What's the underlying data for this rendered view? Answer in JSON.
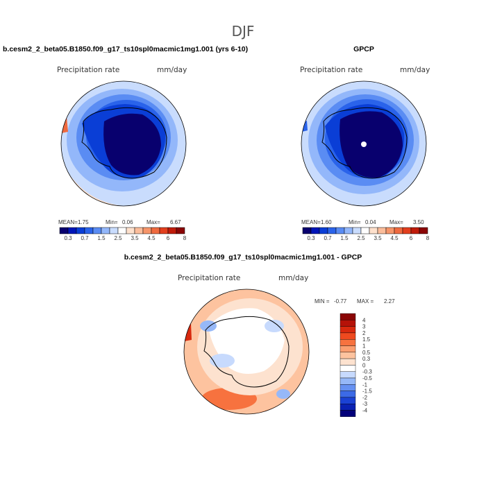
{
  "figure": {
    "season": "DJF"
  },
  "colors": {
    "land_outline": "#000000",
    "ocean_default": "#ffffff",
    "text": "#000000",
    "subtext": "#333333"
  },
  "chart_data": [
    {
      "type": "polar-contour-map",
      "id": "model",
      "title": "b.cesm2_2_beta05.B1850.f09_g17_ts10spl0macmic1mg1.001 (yrs 6-10)",
      "variable": "Precipitation rate",
      "units": "mm/day",
      "stats_labels": [
        "MEAN=",
        "Min=",
        "Max="
      ],
      "stats_values": [
        "1.75",
        "0.06",
        "6.67"
      ],
      "colorbar": {
        "levels": [
          "0.3",
          "0.7",
          "1.5",
          "2.5",
          "3.5",
          "4.5",
          "6",
          "8"
        ],
        "colors": [
          "#08006e",
          "#0015b8",
          "#0a3ed6",
          "#2a63ea",
          "#5a8cf3",
          "#93b7fa",
          "#c9dcfd",
          "#ffffff",
          "#fde0cc",
          "#fbbd9b",
          "#f6956a",
          "#ef6a3f",
          "#e23f1e",
          "#c01b0a",
          "#8a0505"
        ]
      }
    },
    {
      "type": "polar-contour-map",
      "id": "obs",
      "title": "GPCP",
      "variable": "Precipitation rate",
      "units": "mm/day",
      "stats_labels": [
        "MEAN=",
        "Min=",
        "Max="
      ],
      "stats_values": [
        "1.60",
        "0.04",
        "3.50"
      ],
      "colorbar": {
        "levels": [
          "0.3",
          "0.7",
          "1.5",
          "2.5",
          "3.5",
          "4.5",
          "6",
          "8"
        ],
        "colors": [
          "#08006e",
          "#0015b8",
          "#0a3ed6",
          "#2a63ea",
          "#5a8cf3",
          "#93b7fa",
          "#c9dcfd",
          "#ffffff",
          "#fde0cc",
          "#fbbd9b",
          "#f6956a",
          "#ef6a3f",
          "#e23f1e",
          "#c01b0a",
          "#8a0505"
        ]
      }
    },
    {
      "type": "polar-contour-map",
      "id": "diff",
      "title": "b.cesm2_2_beta05.B1850.f09_g17_ts10spl0macmic1mg1.001 - GPCP",
      "variable": "Precipitation rate",
      "units": "mm/day",
      "stats_text": [
        "MIN =",
        "-0.77",
        "MAX =",
        "2.27"
      ],
      "colorbar": {
        "levels": [
          "4",
          "3",
          "2",
          "1.5",
          "1",
          "0.5",
          "0.3",
          "0",
          "-0.3",
          "-0.5",
          "-1",
          "-1.5",
          "-2",
          "-3",
          "-4"
        ],
        "colors": [
          "#8a0505",
          "#b51208",
          "#d8290e",
          "#ef4a1f",
          "#f7723f",
          "#fb9e70",
          "#fdc39f",
          "#fde2cf",
          "#ffffff",
          "#c7dafd",
          "#96b8f8",
          "#6691f2",
          "#3c6ae6",
          "#1b42d4",
          "#0a21b2",
          "#03007a"
        ]
      }
    }
  ]
}
